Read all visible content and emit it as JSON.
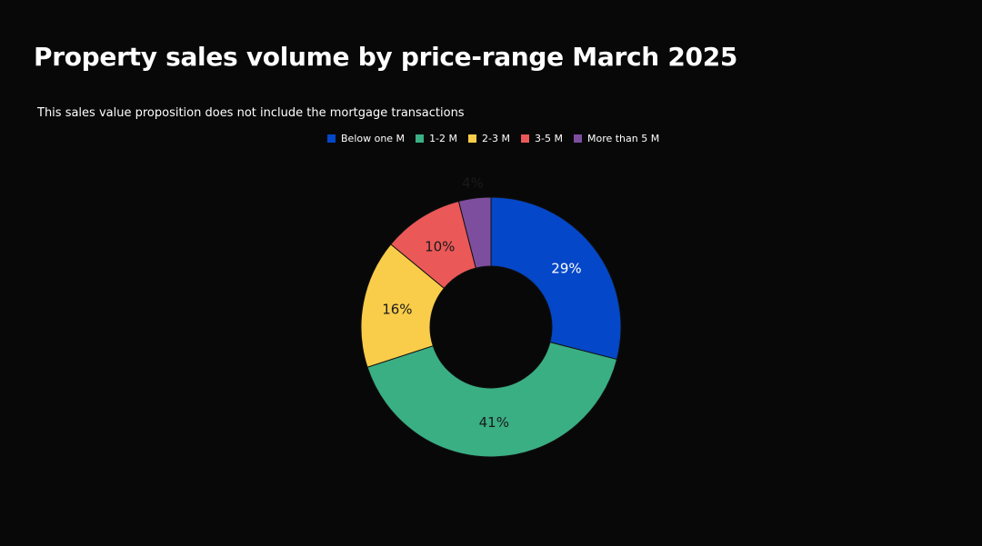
{
  "title": "Property sales volume by price-range March 2025",
  "subtitle": "This sales value proposition does not include the mortgage transactions",
  "chart_data": {
    "type": "pie",
    "donut": true,
    "title": "Property sales volume by price-range March 2025",
    "subtitle": "This sales value proposition does not include the mortgage transactions",
    "legend_position": "top",
    "categories": [
      "Below one M",
      "1-2 M",
      "2-3 M",
      "3-5 M",
      "More than 5 M"
    ],
    "values": [
      29,
      41,
      16,
      10,
      4
    ],
    "labels": [
      "29%",
      "41%",
      "16%",
      "10%",
      "4%"
    ],
    "colors": [
      "#0447c8",
      "#3aaf84",
      "#f9cd4a",
      "#eb5858",
      "#7e4e9e"
    ]
  }
}
